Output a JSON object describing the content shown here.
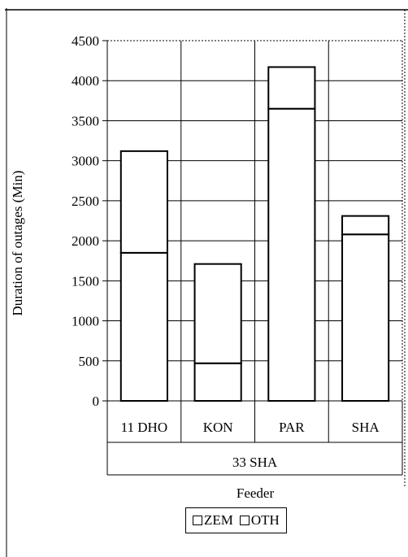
{
  "chart_data": {
    "type": "bar",
    "stacked": true,
    "categories": [
      "11 DHO",
      "KON",
      "PAR",
      "SHA"
    ],
    "group_label": "33 SHA",
    "series": [
      {
        "name": "ZEM",
        "values": [
          1850,
          470,
          3650,
          2080
        ]
      },
      {
        "name": "OTH",
        "values": [
          1270,
          1240,
          520,
          230
        ]
      }
    ],
    "title": "",
    "xlabel": "Feeder",
    "ylabel": "Duration of outages (Min)",
    "ylim": [
      0,
      4500
    ],
    "yticks": [
      "0",
      "500",
      "1000",
      "1500",
      "2000",
      "2500",
      "3000",
      "3500",
      "4000",
      "4500"
    ],
    "grid": true,
    "legend_position": "bottom",
    "colors": {
      "bar_fill": "#ffffff",
      "stroke": "#000000"
    }
  }
}
